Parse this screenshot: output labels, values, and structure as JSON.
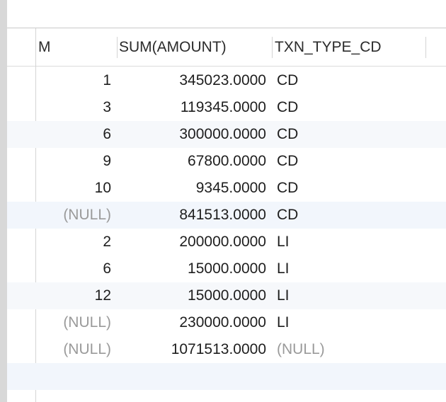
{
  "columns": {
    "m": "M",
    "sum": "SUM(AMOUNT)",
    "type": "TXN_TYPE_CD"
  },
  "rows": [
    {
      "m": "1",
      "sum": "345023.0000",
      "type": "CD"
    },
    {
      "m": "3",
      "sum": "119345.0000",
      "type": "CD"
    },
    {
      "m": "6",
      "sum": "300000.0000",
      "type": "CD"
    },
    {
      "m": "9",
      "sum": "67800.0000",
      "type": "CD"
    },
    {
      "m": "10",
      "sum": "9345.0000",
      "type": "CD"
    },
    {
      "m": "(NULL)",
      "sum": "841513.0000",
      "type": "CD"
    },
    {
      "m": "2",
      "sum": "200000.0000",
      "type": "LI"
    },
    {
      "m": "6",
      "sum": "15000.0000",
      "type": "LI"
    },
    {
      "m": "12",
      "sum": "15000.0000",
      "type": "LI"
    },
    {
      "m": "(NULL)",
      "sum": "230000.0000",
      "type": "LI"
    },
    {
      "m": "(NULL)",
      "sum": "1071513.0000",
      "type": "(NULL)"
    }
  ],
  "null_text": "(NULL)",
  "colors": {
    "null_text": "#9a9a9a",
    "alt_row": "#f6f8fb",
    "focus_row": "#f2f6fc",
    "left_strip": "#d8d8d8"
  }
}
